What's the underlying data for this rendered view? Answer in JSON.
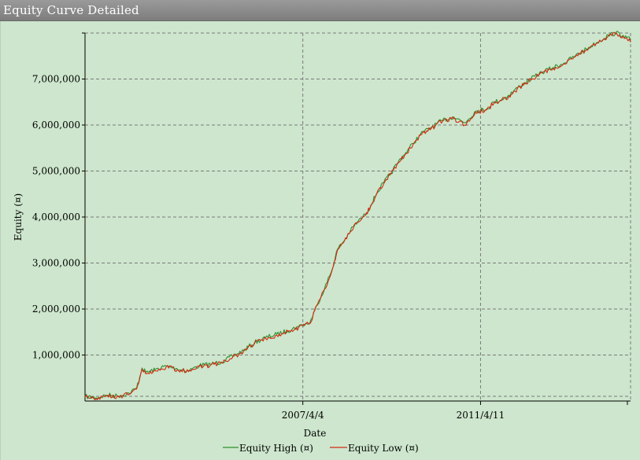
{
  "window": {
    "title": "Equity Curve Detailed"
  },
  "colors": {
    "background": "#cde6cd",
    "grid": "#7a7a7a",
    "equity_high": "#2f8f2f",
    "equity_low": "#d42a12"
  },
  "chart_data": {
    "type": "line",
    "title": "",
    "xlabel": "Date",
    "ylabel": "Equity (¤)",
    "x_start": "2002-05-01",
    "x_end": "2014-09-01",
    "x_ticks": [
      {
        "date": "2007-04-04",
        "label": "2007/4/4"
      },
      {
        "date": "2011-04-11",
        "label": "2011/4/11"
      }
    ],
    "ylim": [
      0,
      8000000
    ],
    "y_ticks": [
      {
        "value": 1000000,
        "label": "1,000,000"
      },
      {
        "value": 2000000,
        "label": "2,000,000"
      },
      {
        "value": 3000000,
        "label": "3,000,000"
      },
      {
        "value": 4000000,
        "label": "4,000,000"
      },
      {
        "value": 5000000,
        "label": "5,000,000"
      },
      {
        "value": 6000000,
        "label": "6,000,000"
      },
      {
        "value": 7000000,
        "label": "7,000,000"
      }
    ],
    "grid": true,
    "legend_position": "bottom-center",
    "x": [
      "2002-05-01",
      "2002-08-01",
      "2002-11-01",
      "2003-02-01",
      "2003-05-01",
      "2003-07-01",
      "2003-08-15",
      "2003-09-15",
      "2003-12-01",
      "2004-03-01",
      "2004-06-01",
      "2004-09-01",
      "2004-12-01",
      "2005-03-01",
      "2005-06-01",
      "2005-09-01",
      "2005-12-01",
      "2006-03-01",
      "2006-06-01",
      "2006-09-01",
      "2006-12-01",
      "2007-03-01",
      "2007-04-01",
      "2007-06-01",
      "2007-08-01",
      "2007-10-01",
      "2007-12-01",
      "2008-01-15",
      "2008-03-01",
      "2008-05-01",
      "2008-07-01",
      "2008-09-01",
      "2008-10-15",
      "2008-12-01",
      "2009-02-01",
      "2009-04-01",
      "2009-06-01",
      "2009-08-01",
      "2009-10-01",
      "2009-12-01",
      "2010-03-01",
      "2010-06-01",
      "2010-09-01",
      "2010-12-01",
      "2011-03-01",
      "2011-06-01",
      "2011-08-01",
      "2011-10-01",
      "2011-12-01",
      "2012-03-01",
      "2012-06-01",
      "2012-09-01",
      "2012-12-01",
      "2013-03-01",
      "2013-06-01",
      "2013-09-01",
      "2013-12-01",
      "2014-03-01",
      "2014-05-01",
      "2014-07-01",
      "2014-08-01",
      "2014-09-01"
    ],
    "series": [
      {
        "name": "Equity High (¤)",
        "values": [
          100000,
          70000,
          130000,
          110000,
          170000,
          280000,
          720000,
          620000,
          680000,
          760000,
          700000,
          660000,
          770000,
          800000,
          850000,
          970000,
          1100000,
          1270000,
          1380000,
          1450000,
          1530000,
          1620000,
          1660000,
          1700000,
          2100000,
          2450000,
          2850000,
          3300000,
          3450000,
          3700000,
          3900000,
          4050000,
          4250000,
          4500000,
          4750000,
          4950000,
          5200000,
          5400000,
          5600000,
          5800000,
          5950000,
          6100000,
          6180000,
          6050000,
          6300000,
          6350000,
          6500000,
          6550000,
          6650000,
          6850000,
          7000000,
          7150000,
          7250000,
          7350000,
          7500000,
          7650000,
          7800000,
          7950000,
          8000000,
          7950000,
          7900000,
          7850000
        ]
      },
      {
        "name": "Equity Low (¤)",
        "values": [
          80000,
          50000,
          110000,
          90000,
          150000,
          260000,
          700000,
          590000,
          660000,
          740000,
          680000,
          640000,
          750000,
          780000,
          830000,
          950000,
          1080000,
          1250000,
          1360000,
          1430000,
          1510000,
          1600000,
          1640000,
          1680000,
          2080000,
          2430000,
          2830000,
          3280000,
          3430000,
          3680000,
          3880000,
          4030000,
          4230000,
          4480000,
          4730000,
          4930000,
          5180000,
          5380000,
          5580000,
          5780000,
          5930000,
          6080000,
          6140000,
          6000000,
          6280000,
          6330000,
          6480000,
          6530000,
          6630000,
          6830000,
          6980000,
          7130000,
          7230000,
          7330000,
          7480000,
          7630000,
          7780000,
          7930000,
          7980000,
          7930000,
          7880000,
          7800000
        ]
      }
    ]
  }
}
